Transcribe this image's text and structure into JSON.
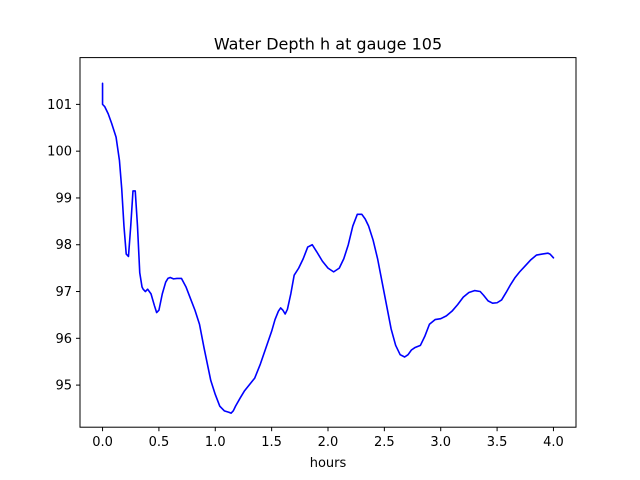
{
  "chart_data": {
    "type": "line",
    "title": "Water Depth h at gauge 105",
    "xlabel": "hours",
    "ylabel": "",
    "xlim": [
      -0.2,
      4.2
    ],
    "ylim": [
      94.1,
      102.0
    ],
    "xticks": [
      0.0,
      0.5,
      1.0,
      1.5,
      2.0,
      2.5,
      3.0,
      3.5,
      4.0
    ],
    "xtick_labels": [
      "0.0",
      "0.5",
      "1.0",
      "1.5",
      "2.0",
      "2.5",
      "3.0",
      "3.5",
      "4.0"
    ],
    "yticks": [
      95,
      96,
      97,
      98,
      99,
      100,
      101
    ],
    "ytick_labels": [
      "95",
      "96",
      "97",
      "98",
      "99",
      "100",
      "101"
    ],
    "grid": false,
    "legend": "none",
    "series": [
      {
        "color": "#0000ff",
        "x": [
          0.0,
          0.0,
          0.0,
          0.02,
          0.05,
          0.08,
          0.12,
          0.15,
          0.17,
          0.19,
          0.21,
          0.23,
          0.25,
          0.27,
          0.29,
          0.31,
          0.33,
          0.35,
          0.36,
          0.38,
          0.4,
          0.43,
          0.46,
          0.48,
          0.5,
          0.53,
          0.56,
          0.58,
          0.6,
          0.63,
          0.66,
          0.7,
          0.74,
          0.78,
          0.82,
          0.86,
          0.9,
          0.93,
          0.96,
          1.0,
          1.04,
          1.08,
          1.12,
          1.14,
          1.16,
          1.18,
          1.22,
          1.26,
          1.3,
          1.35,
          1.4,
          1.45,
          1.5,
          1.53,
          1.56,
          1.58,
          1.6,
          1.62,
          1.64,
          1.67,
          1.7,
          1.74,
          1.78,
          1.82,
          1.86,
          1.9,
          1.95,
          2.0,
          2.05,
          2.1,
          2.14,
          2.18,
          2.22,
          2.26,
          2.3,
          2.33,
          2.36,
          2.4,
          2.44,
          2.48,
          2.52,
          2.56,
          2.6,
          2.64,
          2.68,
          2.71,
          2.74,
          2.77,
          2.82,
          2.86,
          2.9,
          2.95,
          3.0,
          3.05,
          3.1,
          3.15,
          3.2,
          3.25,
          3.3,
          3.35,
          3.38,
          3.42,
          3.46,
          3.5,
          3.54,
          3.58,
          3.62,
          3.66,
          3.7,
          3.75,
          3.8,
          3.85,
          3.9,
          3.95,
          3.97,
          4.0
        ],
        "y": [
          101.45,
          101.0,
          101.0,
          100.95,
          100.8,
          100.6,
          100.3,
          99.8,
          99.2,
          98.4,
          97.8,
          97.75,
          98.4,
          99.15,
          99.15,
          98.4,
          97.4,
          97.1,
          97.05,
          97.0,
          97.05,
          96.95,
          96.7,
          96.55,
          96.6,
          96.95,
          97.2,
          97.28,
          97.3,
          97.27,
          97.28,
          97.28,
          97.1,
          96.85,
          96.6,
          96.3,
          95.8,
          95.45,
          95.1,
          94.8,
          94.55,
          94.45,
          94.42,
          94.4,
          94.45,
          94.55,
          94.72,
          94.88,
          95.0,
          95.15,
          95.45,
          95.8,
          96.15,
          96.4,
          96.58,
          96.65,
          96.6,
          96.52,
          96.62,
          96.95,
          97.35,
          97.5,
          97.7,
          97.95,
          98.0,
          97.85,
          97.65,
          97.5,
          97.42,
          97.5,
          97.7,
          98.0,
          98.4,
          98.65,
          98.65,
          98.55,
          98.4,
          98.1,
          97.7,
          97.2,
          96.7,
          96.2,
          95.85,
          95.65,
          95.6,
          95.65,
          95.75,
          95.8,
          95.85,
          96.05,
          96.3,
          96.4,
          96.42,
          96.48,
          96.58,
          96.72,
          96.88,
          96.98,
          97.02,
          97.0,
          96.92,
          96.8,
          96.75,
          96.76,
          96.82,
          96.98,
          97.15,
          97.3,
          97.42,
          97.55,
          97.68,
          97.78,
          97.8,
          97.82,
          97.8,
          97.72
        ]
      }
    ]
  }
}
